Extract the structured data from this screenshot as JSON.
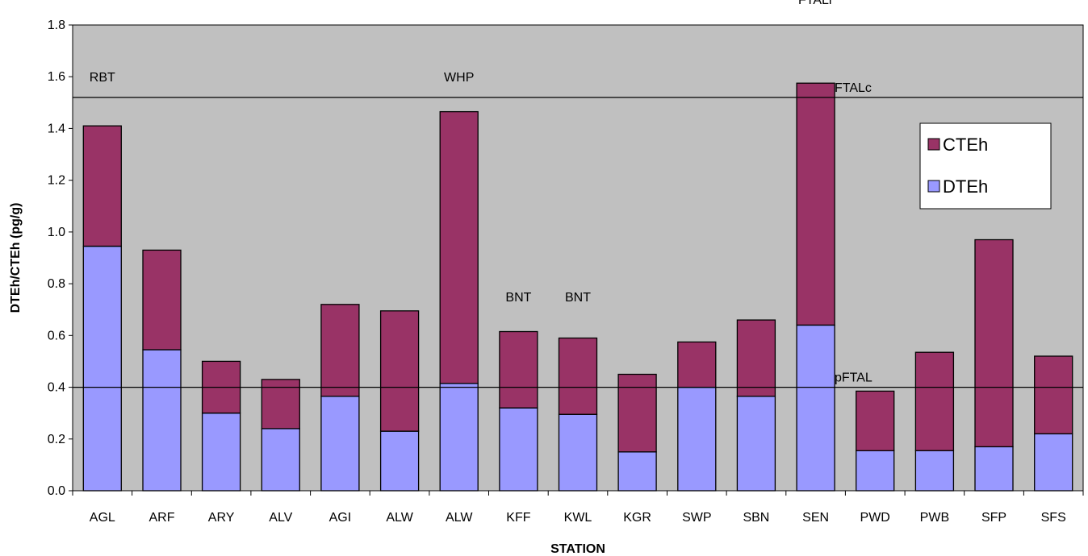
{
  "chart_data": {
    "type": "bar",
    "stacked": true,
    "xlabel": "STATION",
    "ylabel": "DTEh/CTEh (pg/g)",
    "ylim": [
      0,
      1.8
    ],
    "yticks": [
      "0.0",
      "0.2",
      "0.4",
      "0.6",
      "0.8",
      "1.0",
      "1.2",
      "1.4",
      "1.6",
      "1.8"
    ],
    "categories": [
      "AGL",
      "ARF",
      "ARY",
      "ALV",
      "AGI",
      "ALW",
      "ALW",
      "KFF",
      "KWL",
      "KGR",
      "SWP",
      "SBN",
      "SEN",
      "PWD",
      "PWB",
      "SFP",
      "SFS"
    ],
    "series": [
      {
        "name": "DTEh",
        "color": "#9999ff",
        "values": [
          0.945,
          0.545,
          0.3,
          0.24,
          0.365,
          0.23,
          0.415,
          0.32,
          0.295,
          0.15,
          0.4,
          0.365,
          0.64,
          0.155,
          0.155,
          0.17,
          0.22
        ]
      },
      {
        "name": "CTEh",
        "color": "#993366",
        "values": [
          0.465,
          0.385,
          0.2,
          0.19,
          0.355,
          0.465,
          1.05,
          0.295,
          0.295,
          0.3,
          0.175,
          0.295,
          0.935,
          0.23,
          0.38,
          0.8,
          0.3
        ]
      }
    ],
    "reference_lines": [
      {
        "label": "FTALc",
        "value": 1.52
      },
      {
        "label": "pFTAL",
        "value": 0.4
      }
    ],
    "annotations": [
      {
        "text": "RBT",
        "category_index": 0,
        "y": 1.6
      },
      {
        "text": "WHP",
        "category_index": 6,
        "y": 1.6
      },
      {
        "text": "BNT",
        "category_index": 7,
        "y": 0.75
      },
      {
        "text": "BNT",
        "category_index": 8,
        "y": 0.75
      },
      {
        "text": "FTALr",
        "category_index": 12,
        "y": 1.9
      }
    ],
    "legend": {
      "position": "right",
      "entries": [
        "CTEh",
        "DTEh"
      ]
    },
    "plot_background": "#c0c0c0",
    "grid": false
  }
}
